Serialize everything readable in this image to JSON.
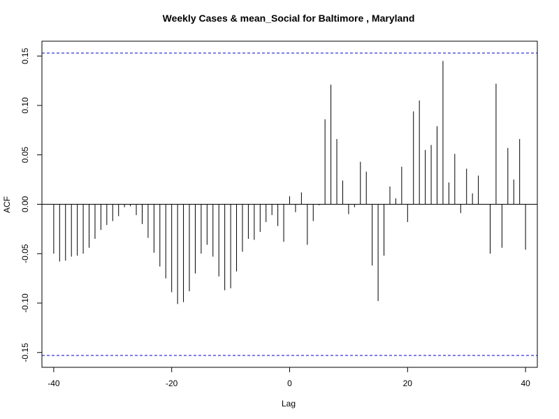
{
  "chart_data": {
    "type": "bar",
    "title": "Weekly Cases & mean_Social for Baltimore , Maryland",
    "xlabel": "Lag",
    "ylabel": "ACF",
    "xlim": [
      -42,
      42
    ],
    "ylim": [
      -0.165,
      0.165
    ],
    "x_ticks": [
      -40,
      -20,
      0,
      20,
      40
    ],
    "x_tick_labels": [
      "-40",
      "-20",
      "0",
      "20",
      "40"
    ],
    "y_ticks": [
      -0.15,
      -0.1,
      -0.05,
      0.0,
      0.05,
      0.1,
      0.15
    ],
    "y_tick_labels": [
      "-0.15",
      "-0.10",
      "-0.05",
      "0.00",
      "0.05",
      "0.10",
      "0.15"
    ],
    "confidence_bound": 0.153,
    "confidence_color": "#0000cd",
    "bar_color": "#000000",
    "lags": [
      -40,
      -39,
      -38,
      -37,
      -36,
      -35,
      -34,
      -33,
      -32,
      -31,
      -30,
      -29,
      -28,
      -27,
      -26,
      -25,
      -24,
      -23,
      -22,
      -21,
      -20,
      -19,
      -18,
      -17,
      -16,
      -15,
      -14,
      -13,
      -12,
      -11,
      -10,
      -9,
      -8,
      -7,
      -6,
      -5,
      -4,
      -3,
      -2,
      -1,
      0,
      1,
      2,
      3,
      4,
      5,
      6,
      7,
      8,
      9,
      10,
      11,
      12,
      13,
      14,
      15,
      16,
      17,
      18,
      19,
      20,
      21,
      22,
      23,
      24,
      25,
      26,
      27,
      28,
      29,
      30,
      31,
      32,
      33,
      34,
      35,
      36,
      37,
      38,
      39,
      40
    ],
    "values": [
      -0.05,
      -0.058,
      -0.057,
      -0.053,
      -0.052,
      -0.05,
      -0.044,
      -0.035,
      -0.026,
      -0.021,
      -0.017,
      -0.012,
      -0.003,
      -0.002,
      -0.011,
      -0.02,
      -0.034,
      -0.049,
      -0.063,
      -0.075,
      -0.089,
      -0.101,
      -0.099,
      -0.088,
      -0.07,
      -0.05,
      -0.041,
      -0.053,
      -0.073,
      -0.087,
      -0.085,
      -0.068,
      -0.048,
      -0.035,
      -0.036,
      -0.028,
      -0.018,
      -0.011,
      -0.022,
      -0.038,
      0.008,
      -0.008,
      0.012,
      -0.041,
      -0.017,
      -0.001,
      0.086,
      0.121,
      0.066,
      0.024,
      -0.01,
      -0.003,
      0.043,
      0.033,
      -0.062,
      -0.098,
      -0.052,
      0.018,
      0.006,
      0.038,
      -0.018,
      0.094,
      0.105,
      0.055,
      0.06,
      0.079,
      0.145,
      0.022,
      0.051,
      -0.009,
      0.036,
      0.011,
      0.029,
      0.0,
      -0.05,
      0.122,
      -0.044,
      0.057,
      0.025,
      0.066,
      -0.046
    ]
  }
}
